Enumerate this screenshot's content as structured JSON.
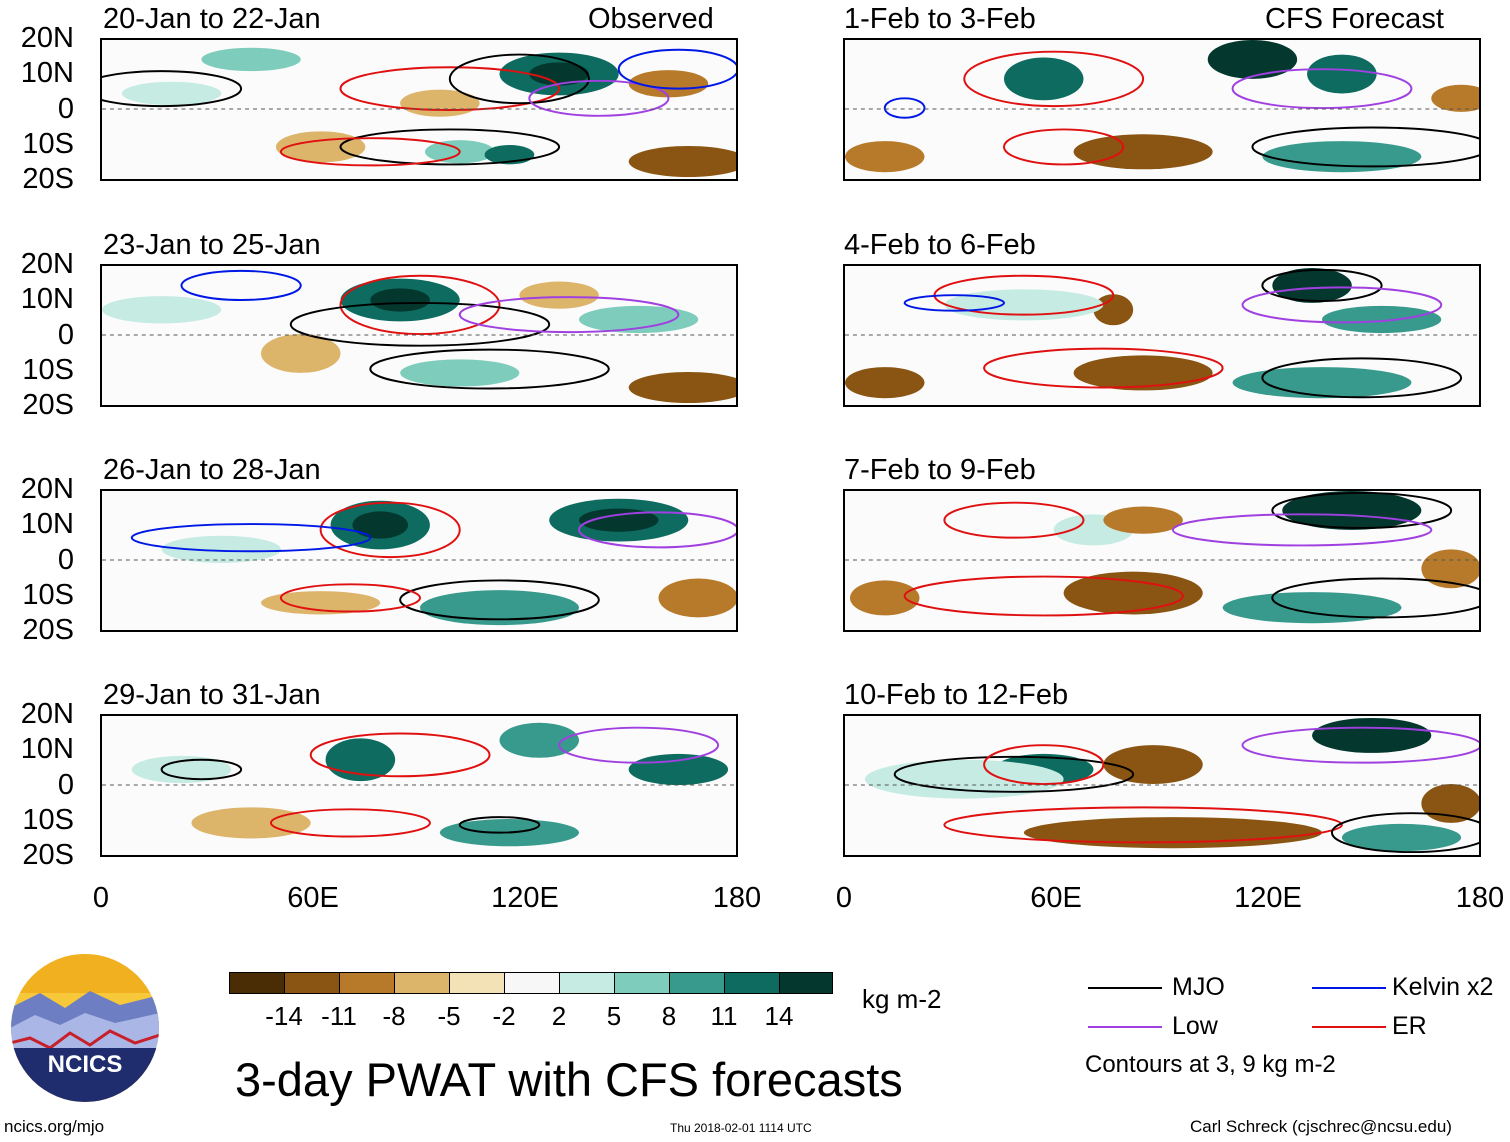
{
  "observed_label": "Observed",
  "forecast_label": "CFS Forecast",
  "panels_left": [
    "20-Jan to 22-Jan",
    "23-Jan to 25-Jan",
    "26-Jan to 28-Jan",
    "29-Jan to 31-Jan"
  ],
  "panels_right": [
    "1-Feb to 3-Feb",
    "4-Feb to 6-Feb",
    "7-Feb to 9-Feb",
    "10-Feb to 12-Feb"
  ],
  "lat_labels": [
    "20N",
    "10N",
    "0",
    "10S",
    "20S"
  ],
  "lon_labels": [
    "0",
    "60E",
    "120E",
    "180"
  ],
  "colorbar": {
    "labels": [
      "-14",
      "-11",
      "-8",
      "-5",
      "-2",
      "2",
      "5",
      "8",
      "11",
      "14"
    ],
    "colors": [
      "#4a2d05",
      "#8a5512",
      "#b77a2a",
      "#dcb56a",
      "#f2e2b6",
      "#f7f7f7",
      "#c5ebe2",
      "#7ecdbc",
      "#379a8c",
      "#0d6b60",
      "#04382f"
    ],
    "units": "kg m-2"
  },
  "legend": {
    "mjo": "MJO",
    "kelvin": "Kelvin x2",
    "low": "Low",
    "er": "ER",
    "note": "Contours at 3, 9 kg m-2",
    "colors": {
      "mjo": "#000000",
      "kelvin": "#0018e6",
      "low": "#a040e0",
      "er": "#e01010"
    }
  },
  "title": "3-day PWAT with CFS forecasts",
  "logo_text": "NCICS",
  "footer_left": "ncics.org/mjo",
  "footer_mid": "Thu 2018-02-01 1114 UTC",
  "footer_right": "Carl Schreck (cjschrec@ncsu.edu)"
}
